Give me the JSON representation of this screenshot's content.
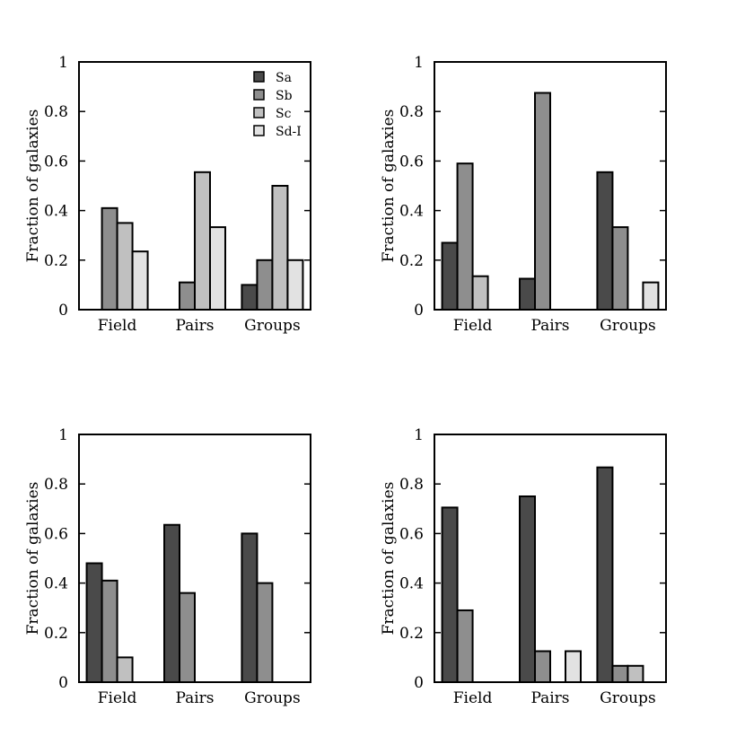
{
  "chart_data": [
    {
      "type": "bar",
      "categories": [
        "Field",
        "Pairs",
        "Groups"
      ],
      "ylabel": "Fraction of galaxies",
      "ylim": [
        0,
        1
      ],
      "yticks": [
        "0",
        "0.2",
        "0.4",
        "0.6",
        "0.8",
        "1"
      ],
      "legend": true,
      "legend_position": "top-right",
      "series": [
        {
          "name": "Sa",
          "color": "#4a4a4a",
          "values": [
            0,
            0,
            0.1
          ]
        },
        {
          "name": "Sb",
          "color": "#8e8e8e",
          "values": [
            0.41,
            0.11,
            0.2
          ]
        },
        {
          "name": "Sc",
          "color": "#c0c0c0",
          "values": [
            0.35,
            0.555,
            0.5
          ]
        },
        {
          "name": "Sd-I",
          "color": "#e2e2e2",
          "values": [
            0.235,
            0.333,
            0.2
          ]
        }
      ]
    },
    {
      "type": "bar",
      "categories": [
        "Field",
        "Pairs",
        "Groups"
      ],
      "ylabel": "Fraction of galaxies",
      "ylim": [
        0,
        1
      ],
      "yticks": [
        "0",
        "0.2",
        "0.4",
        "0.6",
        "0.8",
        "1"
      ],
      "legend": false,
      "series": [
        {
          "name": "Sa",
          "color": "#4a4a4a",
          "values": [
            0.27,
            0.125,
            0.555
          ]
        },
        {
          "name": "Sb",
          "color": "#8e8e8e",
          "values": [
            0.59,
            0.875,
            0.333
          ]
        },
        {
          "name": "Sc",
          "color": "#c0c0c0",
          "values": [
            0.135,
            0,
            0
          ]
        },
        {
          "name": "Sd-I",
          "color": "#e2e2e2",
          "values": [
            0,
            0,
            0.11
          ]
        }
      ]
    },
    {
      "type": "bar",
      "categories": [
        "Field",
        "Pairs",
        "Groups"
      ],
      "ylabel": "Fraction of galaxies",
      "ylim": [
        0,
        1
      ],
      "yticks": [
        "0",
        "0.2",
        "0.4",
        "0.6",
        "0.8",
        "1"
      ],
      "legend": false,
      "series": [
        {
          "name": "Sa",
          "color": "#4a4a4a",
          "values": [
            0.48,
            0.635,
            0.6
          ]
        },
        {
          "name": "Sb",
          "color": "#8e8e8e",
          "values": [
            0.41,
            0.36,
            0.4
          ]
        },
        {
          "name": "Sc",
          "color": "#c0c0c0",
          "values": [
            0.1,
            0,
            0
          ]
        },
        {
          "name": "Sd-I",
          "color": "#e2e2e2",
          "values": [
            0,
            0,
            0
          ]
        }
      ]
    },
    {
      "type": "bar",
      "categories": [
        "Field",
        "Pairs",
        "Groups"
      ],
      "ylabel": "Fraction of galaxies",
      "ylim": [
        0,
        1
      ],
      "yticks": [
        "0",
        "0.2",
        "0.4",
        "0.6",
        "0.8",
        "1"
      ],
      "legend": false,
      "series": [
        {
          "name": "Sa",
          "color": "#4a4a4a",
          "values": [
            0.705,
            0.75,
            0.867
          ]
        },
        {
          "name": "Sb",
          "color": "#8e8e8e",
          "values": [
            0.29,
            0.125,
            0.066
          ]
        },
        {
          "name": "Sc",
          "color": "#c0c0c0",
          "values": [
            0,
            0,
            0.066
          ]
        },
        {
          "name": "Sd-I",
          "color": "#e2e2e2",
          "values": [
            0,
            0.125,
            0
          ]
        }
      ]
    }
  ]
}
